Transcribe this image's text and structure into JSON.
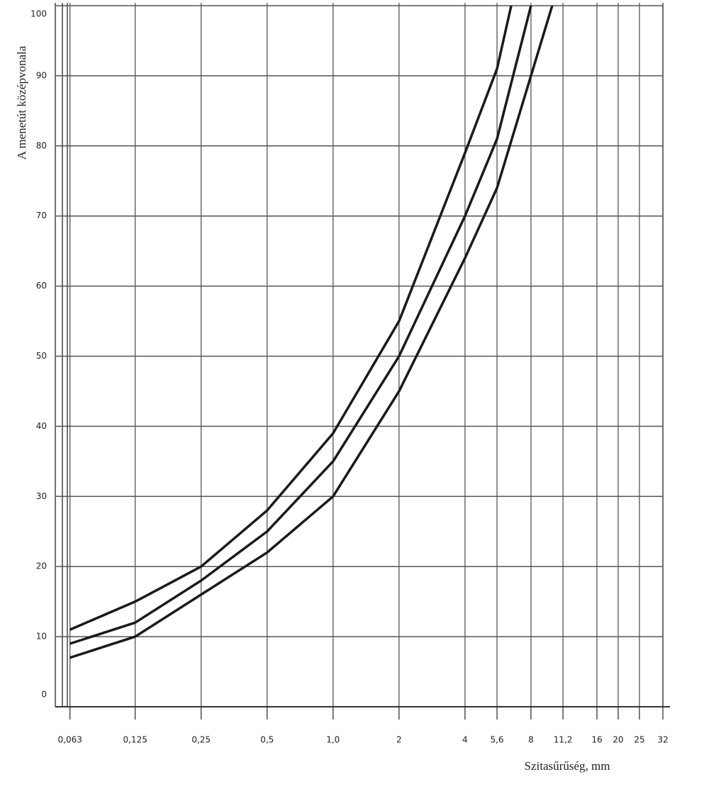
{
  "chart_data": {
    "type": "line",
    "x_label": "Szitasűrűség, mm",
    "y_label": "A menetút középvonala",
    "log_x": true,
    "grid": true,
    "xlim": [
      0.054,
      32
    ],
    "ylim": [
      0,
      100
    ],
    "xticks": [
      {
        "value": 0.063,
        "label": "0,063"
      },
      {
        "value": 0.125,
        "label": "0,125"
      },
      {
        "value": 0.25,
        "label": "0,25"
      },
      {
        "value": 0.5,
        "label": "0,5"
      },
      {
        "value": 1.0,
        "label": "1,0"
      },
      2,
      4,
      {
        "value": 5.6,
        "label": "5,6"
      },
      8,
      {
        "value": 11.2,
        "label": "11,2"
      },
      16,
      20,
      25,
      32
    ],
    "yticks": [
      0,
      10,
      20,
      30,
      40,
      50,
      60,
      70,
      80,
      90,
      100
    ],
    "series": [
      {
        "color": "#1a1a1a",
        "x": [
          0.063,
          0.125,
          0.25,
          0.5,
          1,
          2,
          4,
          5.6,
          6.5
        ],
        "values": [
          11,
          15,
          20,
          28,
          39,
          55,
          79,
          91,
          100
        ]
      },
      {
        "color": "#1a1a1a",
        "x": [
          0.063,
          0.125,
          0.25,
          0.5,
          1,
          2,
          4,
          5.6,
          8
        ],
        "values": [
          9,
          12,
          18,
          25,
          35,
          50,
          70,
          81,
          100
        ]
      },
      {
        "color": "#1a1a1a",
        "x": [
          0.063,
          0.125,
          0.25,
          0.5,
          1,
          2,
          4,
          5.6,
          8,
          10
        ],
        "values": [
          7,
          10,
          16,
          22,
          30,
          45,
          64,
          74,
          90,
          100
        ]
      }
    ]
  }
}
